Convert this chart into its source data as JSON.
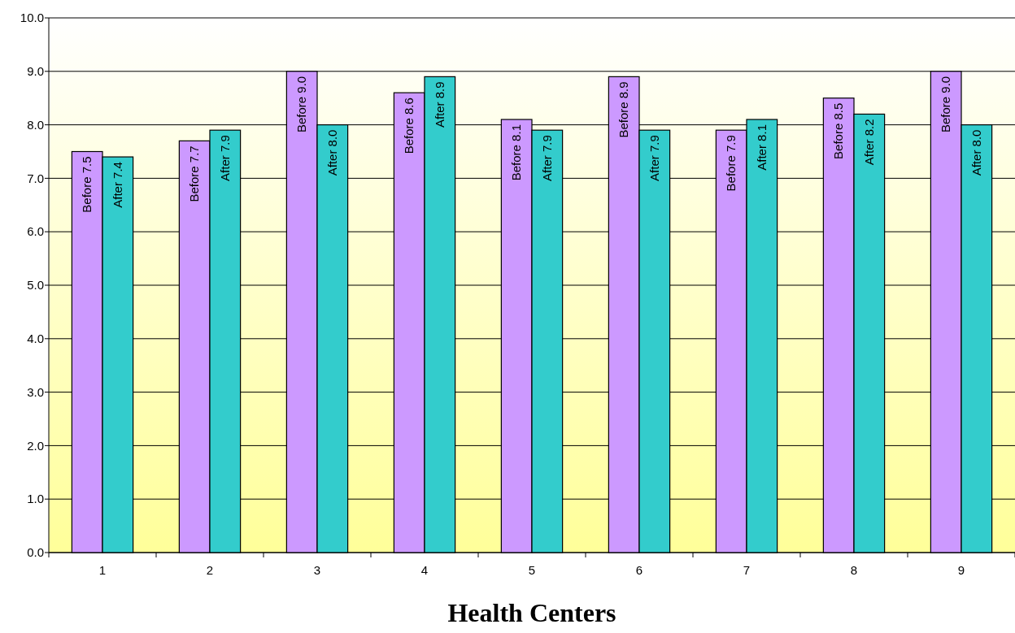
{
  "chart_data": {
    "type": "bar",
    "xlabel": "Health Centers",
    "categories": [
      "1",
      "2",
      "3",
      "4",
      "5",
      "6",
      "7",
      "8",
      "9"
    ],
    "series": [
      {
        "color": "#cc99ff",
        "values": [
          7.5,
          7.7,
          9.0,
          8.6,
          8.1,
          8.9,
          7.9,
          8.5,
          9.0
        ],
        "value_labels": [
          "Before 7.5",
          "Before 7.7",
          "Before 9.0",
          "Before 8.6",
          "Before 8.1",
          "Before 8.9",
          "Before 7.9",
          "Before 8.5",
          "Before 9.0"
        ]
      },
      {
        "color": "#33cccc",
        "values": [
          7.4,
          7.9,
          8.0,
          8.9,
          7.9,
          7.9,
          8.1,
          8.2,
          8.0
        ],
        "value_labels": [
          "After 7.4",
          "After 7.9",
          "After 8.0",
          "After 8.9",
          "After 7.9",
          "After 7.9",
          "After 8.1",
          "After 8.2",
          "After 8.0"
        ]
      }
    ],
    "ylim": [
      0,
      10
    ],
    "yticks": [
      {
        "value": 0,
        "label": "0.0"
      },
      {
        "value": 1,
        "label": "1.0"
      },
      {
        "value": 2,
        "label": "2.0"
      },
      {
        "value": 3,
        "label": "3.0"
      },
      {
        "value": 4,
        "label": "4.0"
      },
      {
        "value": 5,
        "label": "5.0"
      },
      {
        "value": 6,
        "label": "6.0"
      },
      {
        "value": 7,
        "label": "7.0"
      },
      {
        "value": 8,
        "label": "8.0"
      },
      {
        "value": 9,
        "label": "9.0"
      },
      {
        "value": 10,
        "label": "10.0"
      }
    ],
    "grid": "y"
  }
}
